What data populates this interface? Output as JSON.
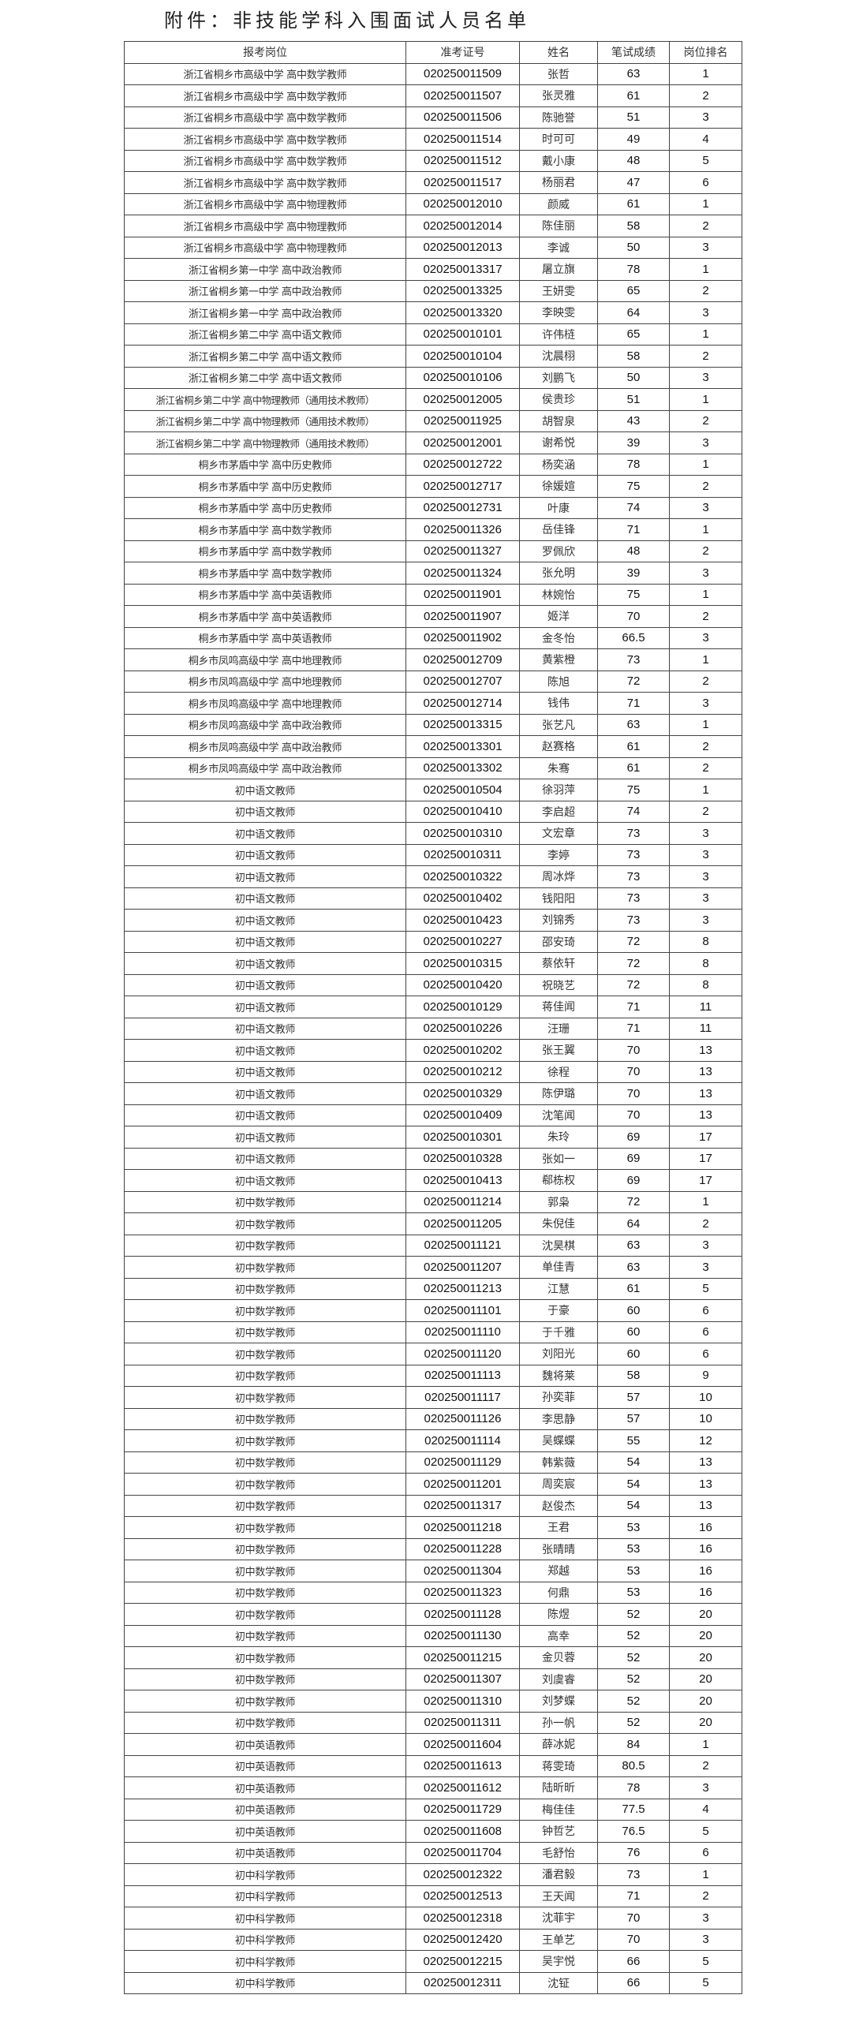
{
  "title": "附件：非技能学科入围面试人员名单",
  "table": {
    "headers": [
      "报考岗位",
      "准考证号",
      "姓名",
      "笔试成绩",
      "岗位排名"
    ],
    "rows": [
      [
        "浙江省桐乡市高级中学 高中数学教师",
        "020250011509",
        "张哲",
        "63",
        "1"
      ],
      [
        "浙江省桐乡市高级中学 高中数学教师",
        "020250011507",
        "张灵雅",
        "61",
        "2"
      ],
      [
        "浙江省桐乡市高级中学 高中数学教师",
        "020250011506",
        "陈驰誉",
        "51",
        "3"
      ],
      [
        "浙江省桐乡市高级中学 高中数学教师",
        "020250011514",
        "时可可",
        "49",
        "4"
      ],
      [
        "浙江省桐乡市高级中学 高中数学教师",
        "020250011512",
        "戴小康",
        "48",
        "5"
      ],
      [
        "浙江省桐乡市高级中学 高中数学教师",
        "020250011517",
        "杨丽君",
        "47",
        "6"
      ],
      [
        "浙江省桐乡市高级中学 高中物理教师",
        "020250012010",
        "颜威",
        "61",
        "1"
      ],
      [
        "浙江省桐乡市高级中学 高中物理教师",
        "020250012014",
        "陈佳丽",
        "58",
        "2"
      ],
      [
        "浙江省桐乡市高级中学 高中物理教师",
        "020250012013",
        "李诚",
        "50",
        "3"
      ],
      [
        "浙江省桐乡第一中学 高中政治教师",
        "020250013317",
        "屠立旗",
        "78",
        "1"
      ],
      [
        "浙江省桐乡第一中学 高中政治教师",
        "020250013325",
        "王妍雯",
        "65",
        "2"
      ],
      [
        "浙江省桐乡第一中学 高中政治教师",
        "020250013320",
        "李映雯",
        "64",
        "3"
      ],
      [
        "浙江省桐乡第二中学 高中语文教师",
        "020250010101",
        "许伟梿",
        "65",
        "1"
      ],
      [
        "浙江省桐乡第二中学 高中语文教师",
        "020250010104",
        "沈晨栩",
        "58",
        "2"
      ],
      [
        "浙江省桐乡第二中学 高中语文教师",
        "020250010106",
        "刘鹏飞",
        "50",
        "3"
      ],
      [
        "浙江省桐乡第二中学 高中物理教师（通用技术教师）",
        "020250012005",
        "侯贵珍",
        "51",
        "1"
      ],
      [
        "浙江省桐乡第二中学 高中物理教师（通用技术教师）",
        "020250011925",
        "胡智泉",
        "43",
        "2"
      ],
      [
        "浙江省桐乡第二中学 高中物理教师（通用技术教师）",
        "020250012001",
        "谢希悦",
        "39",
        "3"
      ],
      [
        "桐乡市茅盾中学 高中历史教师",
        "020250012722",
        "杨奕涵",
        "78",
        "1"
      ],
      [
        "桐乡市茅盾中学 高中历史教师",
        "020250012717",
        "徐媛媗",
        "75",
        "2"
      ],
      [
        "桐乡市茅盾中学 高中历史教师",
        "020250012731",
        "叶康",
        "74",
        "3"
      ],
      [
        "桐乡市茅盾中学 高中数学教师",
        "020250011326",
        "岳佳锋",
        "71",
        "1"
      ],
      [
        "桐乡市茅盾中学 高中数学教师",
        "020250011327",
        "罗佩欣",
        "48",
        "2"
      ],
      [
        "桐乡市茅盾中学 高中数学教师",
        "020250011324",
        "张允明",
        "39",
        "3"
      ],
      [
        "桐乡市茅盾中学 高中英语教师",
        "020250011901",
        "林婉怡",
        "75",
        "1"
      ],
      [
        "桐乡市茅盾中学 高中英语教师",
        "020250011907",
        "姬洋",
        "70",
        "2"
      ],
      [
        "桐乡市茅盾中学 高中英语教师",
        "020250011902",
        "金冬怡",
        "66.5",
        "3"
      ],
      [
        "桐乡市凤鸣高级中学 高中地理教师",
        "020250012709",
        "黄紫橙",
        "73",
        "1"
      ],
      [
        "桐乡市凤鸣高级中学 高中地理教师",
        "020250012707",
        "陈旭",
        "72",
        "2"
      ],
      [
        "桐乡市凤鸣高级中学 高中地理教师",
        "020250012714",
        "钱伟",
        "71",
        "3"
      ],
      [
        "桐乡市凤鸣高级中学 高中政治教师",
        "020250013315",
        "张艺凡",
        "63",
        "1"
      ],
      [
        "桐乡市凤鸣高级中学 高中政治教师",
        "020250013301",
        "赵赛格",
        "61",
        "2"
      ],
      [
        "桐乡市凤鸣高级中学 高中政治教师",
        "020250013302",
        "朱骞",
        "61",
        "2"
      ],
      [
        "初中语文教师",
        "020250010504",
        "徐羽萍",
        "75",
        "1"
      ],
      [
        "初中语文教师",
        "020250010410",
        "李启超",
        "74",
        "2"
      ],
      [
        "初中语文教师",
        "020250010310",
        "文宏章",
        "73",
        "3"
      ],
      [
        "初中语文教师",
        "020250010311",
        "李婷",
        "73",
        "3"
      ],
      [
        "初中语文教师",
        "020250010322",
        "周冰烨",
        "73",
        "3"
      ],
      [
        "初中语文教师",
        "020250010402",
        "钱阳阳",
        "73",
        "3"
      ],
      [
        "初中语文教师",
        "020250010423",
        "刘锦秀",
        "73",
        "3"
      ],
      [
        "初中语文教师",
        "020250010227",
        "邵安琦",
        "72",
        "8"
      ],
      [
        "初中语文教师",
        "020250010315",
        "蔡依轩",
        "72",
        "8"
      ],
      [
        "初中语文教师",
        "020250010420",
        "祝晓艺",
        "72",
        "8"
      ],
      [
        "初中语文教师",
        "020250010129",
        "蒋佳闻",
        "71",
        "11"
      ],
      [
        "初中语文教师",
        "020250010226",
        "汪珊",
        "71",
        "11"
      ],
      [
        "初中语文教师",
        "020250010202",
        "张王翼",
        "70",
        "13"
      ],
      [
        "初中语文教师",
        "020250010212",
        "徐程",
        "70",
        "13"
      ],
      [
        "初中语文教师",
        "020250010329",
        "陈伊璐",
        "70",
        "13"
      ],
      [
        "初中语文教师",
        "020250010409",
        "沈笔闻",
        "70",
        "13"
      ],
      [
        "初中语文教师",
        "020250010301",
        "朱玲",
        "69",
        "17"
      ],
      [
        "初中语文教师",
        "020250010328",
        "张如一",
        "69",
        "17"
      ],
      [
        "初中语文教师",
        "020250010413",
        "郗栋权",
        "69",
        "17"
      ],
      [
        "初中数学教师",
        "020250011214",
        "郭枭",
        "72",
        "1"
      ],
      [
        "初中数学教师",
        "020250011205",
        "朱倪佳",
        "64",
        "2"
      ],
      [
        "初中数学教师",
        "020250011121",
        "沈昊棋",
        "63",
        "3"
      ],
      [
        "初中数学教师",
        "020250011207",
        "单佳青",
        "63",
        "3"
      ],
      [
        "初中数学教师",
        "020250011213",
        "江慧",
        "61",
        "5"
      ],
      [
        "初中数学教师",
        "020250011101",
        "于豪",
        "60",
        "6"
      ],
      [
        "初中数学教师",
        "020250011110",
        "于千雅",
        "60",
        "6"
      ],
      [
        "初中数学教师",
        "020250011120",
        "刘阳光",
        "60",
        "6"
      ],
      [
        "初中数学教师",
        "020250011113",
        "魏将莱",
        "58",
        "9"
      ],
      [
        "初中数学教师",
        "020250011117",
        "孙奕菲",
        "57",
        "10"
      ],
      [
        "初中数学教师",
        "020250011126",
        "李思静",
        "57",
        "10"
      ],
      [
        "初中数学教师",
        "020250011114",
        "吴蝶蝶",
        "55",
        "12"
      ],
      [
        "初中数学教师",
        "020250011129",
        "韩紫薇",
        "54",
        "13"
      ],
      [
        "初中数学教师",
        "020250011201",
        "周奕宸",
        "54",
        "13"
      ],
      [
        "初中数学教师",
        "020250011317",
        "赵俊杰",
        "54",
        "13"
      ],
      [
        "初中数学教师",
        "020250011218",
        "王君",
        "53",
        "16"
      ],
      [
        "初中数学教师",
        "020250011228",
        "张晴晴",
        "53",
        "16"
      ],
      [
        "初中数学教师",
        "020250011304",
        "郑越",
        "53",
        "16"
      ],
      [
        "初中数学教师",
        "020250011323",
        "何鼎",
        "53",
        "16"
      ],
      [
        "初中数学教师",
        "020250011128",
        "陈煜",
        "52",
        "20"
      ],
      [
        "初中数学教师",
        "020250011130",
        "高幸",
        "52",
        "20"
      ],
      [
        "初中数学教师",
        "020250011215",
        "金贝蓉",
        "52",
        "20"
      ],
      [
        "初中数学教师",
        "020250011307",
        "刘虞睿",
        "52",
        "20"
      ],
      [
        "初中数学教师",
        "020250011310",
        "刘梦蝶",
        "52",
        "20"
      ],
      [
        "初中数学教师",
        "020250011311",
        "孙一帆",
        "52",
        "20"
      ],
      [
        "初中英语教师",
        "020250011604",
        "薛冰妮",
        "84",
        "1"
      ],
      [
        "初中英语教师",
        "020250011613",
        "蒋雯琦",
        "80.5",
        "2"
      ],
      [
        "初中英语教师",
        "020250011612",
        "陆昕昕",
        "78",
        "3"
      ],
      [
        "初中英语教师",
        "020250011729",
        "梅佳佳",
        "77.5",
        "4"
      ],
      [
        "初中英语教师",
        "020250011608",
        "钟哲艺",
        "76.5",
        "5"
      ],
      [
        "初中英语教师",
        "020250011704",
        "毛舒怡",
        "76",
        "6"
      ],
      [
        "初中科学教师",
        "020250012322",
        "潘君毅",
        "73",
        "1"
      ],
      [
        "初中科学教师",
        "020250012513",
        "王天闻",
        "71",
        "2"
      ],
      [
        "初中科学教师",
        "020250012318",
        "沈菲宇",
        "70",
        "3"
      ],
      [
        "初中科学教师",
        "020250012420",
        "王单艺",
        "70",
        "3"
      ],
      [
        "初中科学教师",
        "020250012215",
        "吴宇悦",
        "66",
        "5"
      ],
      [
        "初中科学教师",
        "020250012311",
        "沈钲",
        "66",
        "5"
      ]
    ]
  }
}
